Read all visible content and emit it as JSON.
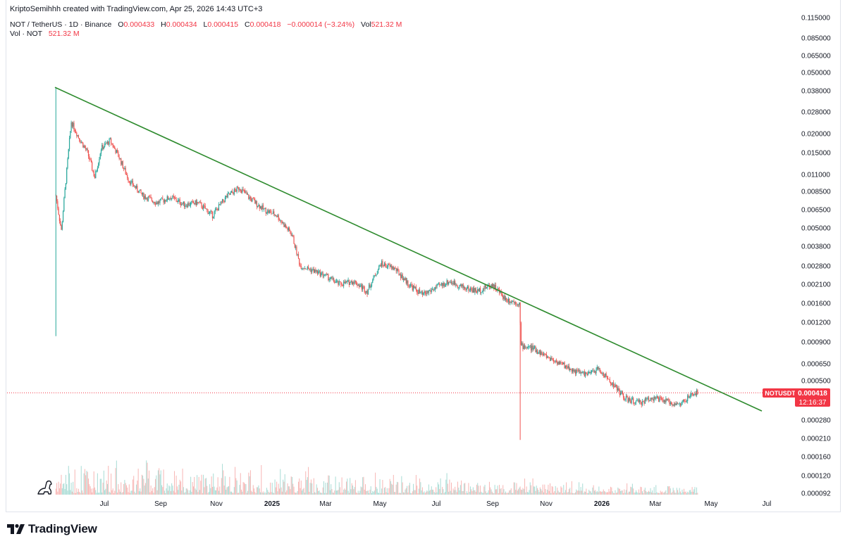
{
  "header": {
    "text": "KriptoSemihhh created with TradingView.com, Apr 25, 2026 14:43 UTC+3"
  },
  "legend": {
    "symbol": "NOT / TetherUS · 1D · Binance",
    "o_label": "O",
    "o_value": "0.000433",
    "h_label": "H",
    "h_value": "0.000434",
    "l_label": "L",
    "l_value": "0.000415",
    "c_label": "C",
    "c_value": "0.000418",
    "change": "−0.000014 (−3.24%)",
    "vol_label": "Vol",
    "vol_value": "521.32 M",
    "vol_line_label": "Vol · NOT",
    "vol_line_value": "521.32 M"
  },
  "price_badge": {
    "symbol": "NOTUSDT",
    "price": "0.000418",
    "countdown": "12:16:37"
  },
  "footer": {
    "brand": "TradingView"
  },
  "colors": {
    "up": "#26a69a",
    "down": "#ef5350",
    "trendline": "#2e8b2e",
    "price_line": "#f23645"
  },
  "chart_data": {
    "type": "candlestick",
    "scale": "log",
    "y_tick_labels": [
      "0.115000",
      "0.085000",
      "0.065000",
      "0.050000",
      "0.038000",
      "0.028000",
      "0.020000",
      "0.015000",
      "0.011000",
      "0.008500",
      "0.006500",
      "0.005000",
      "0.003800",
      "0.002800",
      "0.002100",
      "0.001600",
      "0.001200",
      "0.000900",
      "0.000650",
      "0.000500",
      "0.000280",
      "0.000210",
      "0.000160",
      "0.000120",
      "0.000092"
    ],
    "x_tick_labels": [
      {
        "label": "Jul",
        "bold": false
      },
      {
        "label": "Sep",
        "bold": false
      },
      {
        "label": "Nov",
        "bold": false
      },
      {
        "label": "2025",
        "bold": true
      },
      {
        "label": "Mar",
        "bold": false
      },
      {
        "label": "May",
        "bold": false
      },
      {
        "label": "Jul",
        "bold": false
      },
      {
        "label": "Sep",
        "bold": false
      },
      {
        "label": "Nov",
        "bold": false
      },
      {
        "label": "2026",
        "bold": true
      },
      {
        "label": "Mar",
        "bold": false
      },
      {
        "label": "May",
        "bold": false
      },
      {
        "label": "Jul",
        "bold": false
      }
    ],
    "last_price": 0.000418,
    "price_path": [
      [
        "2024-05-16",
        0.008
      ],
      [
        "2024-05-22",
        0.0048
      ],
      [
        "2024-05-27",
        0.01
      ],
      [
        "2024-06-02",
        0.024
      ],
      [
        "2024-06-10",
        0.019
      ],
      [
        "2024-06-20",
        0.015
      ],
      [
        "2024-06-28",
        0.0105
      ],
      [
        "2024-07-05",
        0.016
      ],
      [
        "2024-07-15",
        0.018
      ],
      [
        "2024-07-25",
        0.014
      ],
      [
        "2024-08-05",
        0.01
      ],
      [
        "2024-08-20",
        0.008
      ],
      [
        "2024-09-05",
        0.0072
      ],
      [
        "2024-09-20",
        0.0078
      ],
      [
        "2024-10-05",
        0.007
      ],
      [
        "2024-10-20",
        0.0072
      ],
      [
        "2024-11-05",
        0.006
      ],
      [
        "2024-11-20",
        0.0078
      ],
      [
        "2024-12-05",
        0.009
      ],
      [
        "2024-12-15",
        0.0078
      ],
      [
        "2025-01-01",
        0.0065
      ],
      [
        "2025-01-15",
        0.006
      ],
      [
        "2025-02-01",
        0.0045
      ],
      [
        "2025-02-10",
        0.0028
      ],
      [
        "2025-02-25",
        0.0026
      ],
      [
        "2025-03-10",
        0.0024
      ],
      [
        "2025-03-25",
        0.0021
      ],
      [
        "2025-04-10",
        0.0022
      ],
      [
        "2025-04-25",
        0.0019
      ],
      [
        "2025-05-10",
        0.0029
      ],
      [
        "2025-05-25",
        0.0027
      ],
      [
        "2025-06-10",
        0.0021
      ],
      [
        "2025-06-25",
        0.0018
      ],
      [
        "2025-07-10",
        0.002
      ],
      [
        "2025-07-25",
        0.0022
      ],
      [
        "2025-08-10",
        0.002
      ],
      [
        "2025-08-25",
        0.0019
      ],
      [
        "2025-09-10",
        0.0021
      ],
      [
        "2025-09-25",
        0.0017
      ],
      [
        "2025-10-10",
        0.0016
      ],
      [
        "2025-10-12",
        0.00085
      ],
      [
        "2025-10-25",
        0.00082
      ],
      [
        "2025-11-10",
        0.00072
      ],
      [
        "2025-11-25",
        0.00065
      ],
      [
        "2025-12-10",
        0.00058
      ],
      [
        "2025-12-25",
        0.00055
      ],
      [
        "2026-01-05",
        0.0006
      ],
      [
        "2026-01-15",
        0.00052
      ],
      [
        "2026-01-25",
        0.00045
      ],
      [
        "2026-02-05",
        0.00038
      ],
      [
        "2026-02-20",
        0.00036
      ],
      [
        "2026-03-05",
        0.00039
      ],
      [
        "2026-03-20",
        0.00037
      ],
      [
        "2026-04-05",
        0.00035
      ],
      [
        "2026-04-20",
        0.00041
      ],
      [
        "2026-04-25",
        0.000418
      ]
    ],
    "trendline": [
      [
        "2024-05-15",
        0.04
      ],
      [
        "2026-07-05",
        0.00032
      ]
    ],
    "volume_unit": "NOT"
  }
}
